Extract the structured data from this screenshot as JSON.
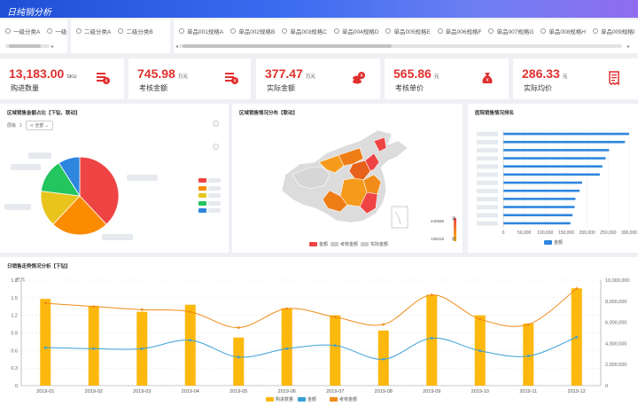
{
  "app": {
    "title": "日纯销分析"
  },
  "filters": {
    "group1": [
      "一级分类A",
      "一级分类B"
    ],
    "group2": [
      "二级分类A",
      "二级分类B"
    ],
    "group3": [
      "单品001规格A",
      "单品002规格B",
      "单品003规格C",
      "单品004规格D",
      "单品005规格E",
      "单品006规格F",
      "单品007规格G",
      "单品008规格H",
      "单品009规格I"
    ]
  },
  "kpis": [
    {
      "value": "13,183.00",
      "unit": "SKU",
      "label": "购进数量",
      "icon": "bill-icon"
    },
    {
      "value": "745.98",
      "unit": "万元",
      "label": "考核金额",
      "icon": "money-stack-icon"
    },
    {
      "value": "377.47",
      "unit": "万元",
      "label": "实际金额",
      "icon": "coins-icon"
    },
    {
      "value": "565.86",
      "unit": "元",
      "label": "考核单价",
      "icon": "money-bag-icon"
    },
    {
      "value": "286.33",
      "unit": "元",
      "label": "实际均价",
      "icon": "receipt-icon"
    }
  ],
  "pie_panel": {
    "title": "区域销售金额占比【下钻、联动】",
    "drill_label": "层级",
    "drill_level": "1",
    "drill_select": "全部",
    "nav_prev": "<",
    "nav_next": ">"
  },
  "map_panel": {
    "title": "区域销售情况分布【联动】",
    "range_max": "440586",
    "range_min": "128318",
    "range_high_label": "高",
    "range_low_label": "低",
    "legend": [
      "金额",
      "考核金额",
      "实际金额"
    ]
  },
  "bar_panel": {
    "title": "医院销售情况排名",
    "legend": "金额"
  },
  "combo_panel": {
    "title": "日销售走势情况分析【下钻】",
    "y_left_title": "万元"
  },
  "colors": {
    "accent": "#1e4fd6",
    "red": "#e0302e",
    "bar_yellow": "#fdb80d",
    "line_blue": "#3aa0d8",
    "line_orange": "#f08c17"
  },
  "chart_data": [
    {
      "type": "pie",
      "title": "区域销售金额占比【下钻、联动】",
      "slices": [
        {
          "name": "区域1",
          "value": 38.0,
          "color": "#ef4444"
        },
        {
          "name": "区域2",
          "value": 24.0,
          "color": "#fb8c00"
        },
        {
          "name": "区域3",
          "value": 15.0,
          "color": "#e8c41c"
        },
        {
          "name": "区域4",
          "value": 14.0,
          "color": "#22c55e"
        },
        {
          "name": "区域5",
          "value": 9.0,
          "color": "#2e86de"
        }
      ]
    },
    {
      "type": "bar",
      "orientation": "horizontal",
      "title": "医院销售情况排名",
      "values": [
        300000,
        290000,
        252000,
        244000,
        236000,
        230000,
        188000,
        182000,
        172000,
        170000,
        165000,
        160000
      ],
      "xlim": [
        0,
        300000
      ],
      "xticks": [
        "0",
        "50,000",
        "100,000",
        "150,000",
        "200,000",
        "250,000",
        "300,000"
      ]
    },
    {
      "type": "bar+line",
      "title": "日销售走势情况分析【下钻】",
      "categories": [
        "2019-01",
        "2019-02",
        "2019-03",
        "2019-04",
        "2019-05",
        "2019-06",
        "2019-07",
        "2019-08",
        "2019-09",
        "2019-10",
        "2019-11",
        "2019-12"
      ],
      "series": [
        {
          "name": "购进数量",
          "type": "bar",
          "axis": "left",
          "values": [
            1.48,
            1.36,
            1.26,
            1.38,
            0.82,
            1.32,
            1.2,
            0.94,
            1.55,
            1.2,
            1.06,
            1.66
          ]
        },
        {
          "name": "金额",
          "type": "line",
          "axis": "right",
          "values": [
            3600000,
            3500000,
            3500000,
            4300000,
            2700000,
            3500000,
            3800000,
            2500000,
            4500000,
            3300000,
            2800000,
            4600000
          ]
        },
        {
          "name": "考核金额",
          "type": "line",
          "axis": "right",
          "values": [
            7800000,
            7500000,
            7200000,
            7000000,
            5500000,
            7300000,
            6500000,
            5800000,
            8600000,
            6300000,
            5800000,
            9200000
          ]
        }
      ],
      "ylim_left": [
        0,
        1.8
      ],
      "yticks_left": [
        "0",
        "0.3",
        "0.6",
        "0.9",
        "1.2",
        "1.5",
        "1.8"
      ],
      "ylim_right": [
        0,
        10000000
      ],
      "yticks_right": [
        "0",
        "2,000,000",
        "4,000,000",
        "6,000,000",
        "8,000,000",
        "10,000,000"
      ]
    }
  ]
}
